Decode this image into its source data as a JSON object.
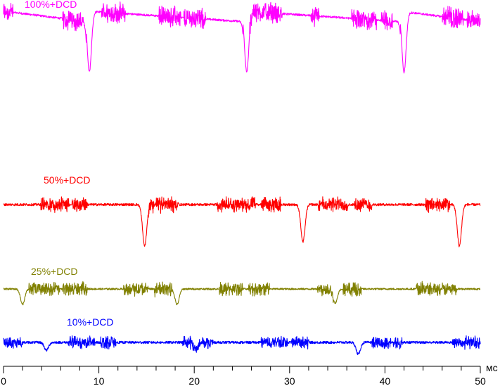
{
  "chart_data": {
    "type": "line",
    "xlabel": "мс",
    "xlim": [
      0,
      50
    ],
    "x_ticks": [
      "0",
      "10",
      "20",
      "30",
      "40",
      "50"
    ],
    "x_major_step": 10,
    "x_minor_step": 2,
    "series": [
      {
        "name": "100%+DCD",
        "color": "#ff00ff",
        "base_level": 0.8,
        "slope_segments": [
          [
            0,
            8.7
          ],
          [
            8.7,
            25.1
          ],
          [
            25.1,
            41.6
          ],
          [
            41.6,
            50
          ]
        ],
        "dips": [
          [
            9.0,
            -7.5
          ],
          [
            25.5,
            -7.5
          ],
          [
            42.0,
            -7.5
          ]
        ],
        "bursts": [
          [
            0,
            1.0
          ],
          [
            6.2,
            8.4
          ],
          [
            10.3,
            12.8
          ],
          [
            16.3,
            18.6
          ],
          [
            18.9,
            21.2
          ],
          [
            25.8,
            29.2
          ],
          [
            32.2,
            33.1
          ],
          [
            36.5,
            39.1
          ],
          [
            39.6,
            40.8
          ],
          [
            46.0,
            48.2
          ],
          [
            48.6,
            50
          ]
        ]
      },
      {
        "name": "50%+DCD",
        "color": "#ff0000",
        "base_level": 0,
        "dips": [
          [
            14.8,
            -4.2
          ],
          [
            31.4,
            -3.8
          ],
          [
            47.8,
            -4.2
          ]
        ],
        "bursts": [
          [
            3.9,
            6.9
          ],
          [
            7.2,
            8.8
          ],
          [
            15.2,
            18.4
          ],
          [
            22.4,
            26.4
          ],
          [
            27.0,
            29.1
          ],
          [
            33.0,
            36.1
          ],
          [
            36.8,
            38.6
          ],
          [
            44.2,
            46.8
          ]
        ]
      },
      {
        "name": "25%+DCD",
        "color": "#808000",
        "base_level": 0,
        "dips": [
          [
            2.0,
            -2.2
          ],
          [
            18.2,
            -2.2
          ],
          [
            34.8,
            -2.0
          ]
        ],
        "bursts": [
          [
            2.6,
            5.9
          ],
          [
            6.2,
            8.8
          ],
          [
            12.6,
            15.2
          ],
          [
            15.8,
            17.7
          ],
          [
            22.6,
            25.1
          ],
          [
            25.7,
            27.9
          ],
          [
            32.9,
            34.6
          ],
          [
            35.6,
            37.5
          ],
          [
            43.2,
            45.8
          ],
          [
            46.0,
            47.5
          ]
        ]
      },
      {
        "name": "10%+DCD",
        "color": "#0000ff",
        "base_level": 0,
        "dips": [
          [
            4.5,
            -0.8
          ],
          [
            20.2,
            -0.8
          ],
          [
            37.2,
            -1.2
          ]
        ],
        "bursts": [
          [
            0,
            2.0
          ],
          [
            6.8,
            9.6
          ],
          [
            10.2,
            11.8
          ],
          [
            18.8,
            20.6
          ],
          [
            20.8,
            22.0
          ],
          [
            27.0,
            29.8
          ],
          [
            30.2,
            32.0
          ],
          [
            38.6,
            40.6
          ],
          [
            40.8,
            41.8
          ],
          [
            47.0,
            50
          ]
        ]
      }
    ]
  }
}
